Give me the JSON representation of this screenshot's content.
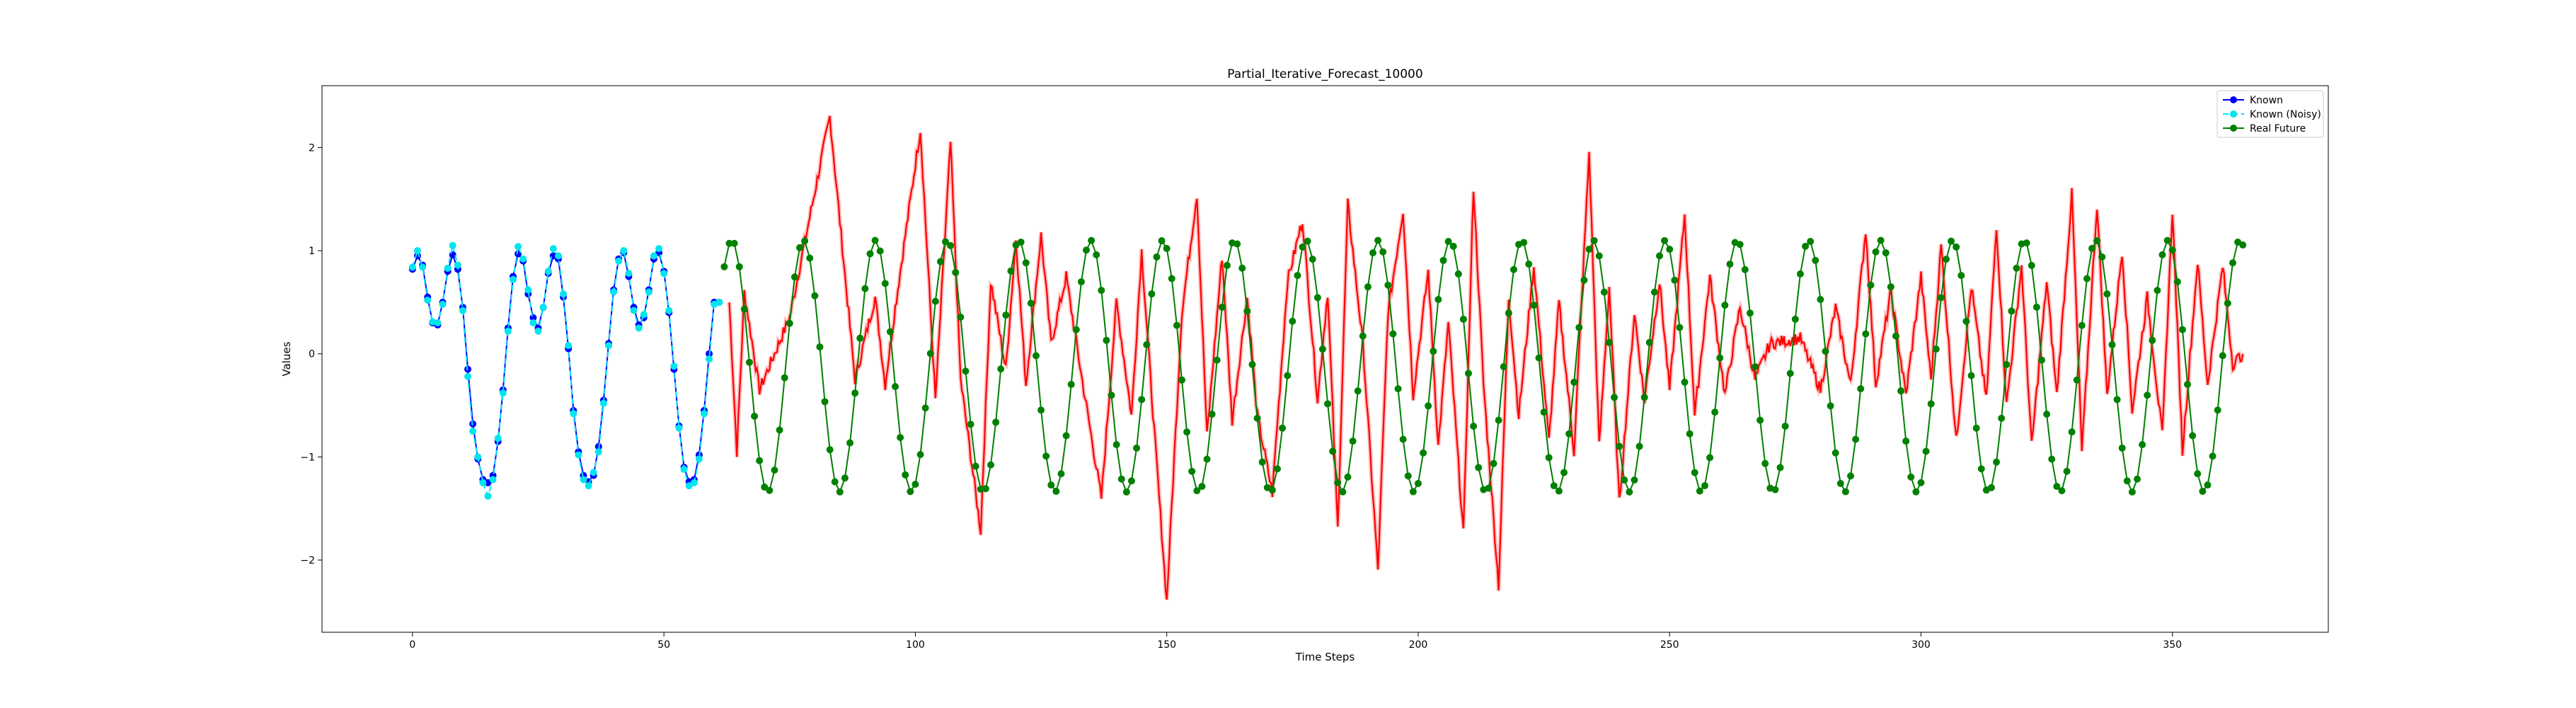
{
  "chart_data": {
    "type": "line",
    "title": "Partial_Iterative_Forecast_10000",
    "xlabel": "Time Steps",
    "ylabel": "Values",
    "xlim": [
      -18,
      381
    ],
    "ylim": [
      -2.7,
      2.6
    ],
    "xticks": [
      0,
      50,
      100,
      150,
      200,
      250,
      300,
      350
    ],
    "yticks": [
      -2,
      -1,
      0,
      1,
      2
    ],
    "grid": false,
    "legend_position": "top-right",
    "series": [
      {
        "name": "Known",
        "color": "#0000ff",
        "marker": "circle",
        "linestyle": "solid",
        "x_start": 0,
        "values": [
          0.82,
          0.95,
          0.86,
          0.55,
          0.3,
          0.28,
          0.5,
          0.8,
          0.96,
          0.82,
          0.45,
          -0.15,
          -0.68,
          -1.02,
          -1.22,
          -1.25,
          -1.18,
          -0.85,
          -0.35,
          0.25,
          0.75,
          0.97,
          0.9,
          0.58,
          0.35,
          0.25,
          0.45,
          0.78,
          0.95,
          0.92,
          0.55,
          0.05,
          -0.55,
          -0.95,
          -1.18,
          -1.24,
          -1.18,
          -0.9,
          -0.45,
          0.1,
          0.62,
          0.92,
          0.98,
          0.75,
          0.45,
          0.28,
          0.35,
          0.62,
          0.92,
          0.98,
          0.8,
          0.4,
          -0.15,
          -0.7,
          -1.1,
          -1.24,
          -1.22,
          -0.98,
          -0.55,
          0.0,
          0.5,
          0.5
        ]
      },
      {
        "name": "Known (Noisy)",
        "color": "#00e5ee",
        "marker": "circle",
        "linestyle": "dashed",
        "x_start": 0,
        "values": [
          0.84,
          1.0,
          0.84,
          0.52,
          0.31,
          0.3,
          0.48,
          0.83,
          1.05,
          0.86,
          0.42,
          -0.22,
          -0.75,
          -1.0,
          -1.25,
          -1.38,
          -1.22,
          -0.82,
          -0.38,
          0.22,
          0.72,
          1.04,
          0.92,
          0.62,
          0.3,
          0.22,
          0.45,
          0.8,
          1.02,
          0.95,
          0.58,
          0.08,
          -0.58,
          -0.98,
          -1.22,
          -1.28,
          -1.15,
          -0.95,
          -0.48,
          0.08,
          0.6,
          0.9,
          1.0,
          0.78,
          0.42,
          0.25,
          0.38,
          0.6,
          0.95,
          1.02,
          0.78,
          0.42,
          -0.12,
          -0.72,
          -1.12,
          -1.28,
          -1.25,
          -1.02,
          -0.58,
          -0.05,
          0.48,
          0.5
        ]
      },
      {
        "name": "Real Future",
        "color": "#008000",
        "marker": "circle",
        "linestyle": "solid",
        "x_start": 62,
        "period": 14.28,
        "phase_x": 63.5,
        "amplitude": 1.22,
        "offset": -0.12,
        "x_end": 364
      },
      {
        "name": "",
        "color": "#ff0000",
        "marker": "none",
        "linestyle": "solid",
        "x_start": 63,
        "x_end": 364,
        "spikes": [
          {
            "x": 64.5,
            "y": -0.95
          },
          {
            "x": 66,
            "y": 0.6
          },
          {
            "x": 69,
            "y": -0.35
          },
          {
            "x": 75,
            "y": 0.35
          },
          {
            "x": 83,
            "y": 2.3
          },
          {
            "x": 88,
            "y": -0.25
          },
          {
            "x": 92,
            "y": 0.55
          },
          {
            "x": 94,
            "y": -0.3
          },
          {
            "x": 96,
            "y": 0.45
          },
          {
            "x": 101,
            "y": 2.18
          },
          {
            "x": 104,
            "y": -0.45
          },
          {
            "x": 107,
            "y": 2.05
          },
          {
            "x": 109,
            "y": -0.25
          },
          {
            "x": 113,
            "y": -1.72
          },
          {
            "x": 115,
            "y": 0.7
          },
          {
            "x": 118,
            "y": -0.15
          },
          {
            "x": 120,
            "y": 1.12
          },
          {
            "x": 122,
            "y": -0.3
          },
          {
            "x": 125,
            "y": 1.15
          },
          {
            "x": 127,
            "y": 0.1
          },
          {
            "x": 130,
            "y": 0.75
          },
          {
            "x": 133,
            "y": -0.2
          },
          {
            "x": 137,
            "y": -1.4
          },
          {
            "x": 140,
            "y": 0.5
          },
          {
            "x": 143,
            "y": -0.6
          },
          {
            "x": 145,
            "y": 1.0
          },
          {
            "x": 147,
            "y": -0.4
          },
          {
            "x": 150,
            "y": -2.4
          },
          {
            "x": 153,
            "y": 0.4
          },
          {
            "x": 156,
            "y": 1.55
          },
          {
            "x": 158,
            "y": -0.8
          },
          {
            "x": 161,
            "y": 0.95
          },
          {
            "x": 163,
            "y": -0.65
          },
          {
            "x": 166,
            "y": 0.55
          },
          {
            "x": 168,
            "y": -0.6
          },
          {
            "x": 171,
            "y": -1.35
          },
          {
            "x": 174,
            "y": 0.7
          },
          {
            "x": 177,
            "y": 1.3
          },
          {
            "x": 180,
            "y": -0.45
          },
          {
            "x": 182,
            "y": 0.6
          },
          {
            "x": 184,
            "y": -1.7
          },
          {
            "x": 186,
            "y": 1.45
          },
          {
            "x": 189,
            "y": 0.1
          },
          {
            "x": 192,
            "y": -2.1
          },
          {
            "x": 194,
            "y": 0.4
          },
          {
            "x": 197,
            "y": 1.4
          },
          {
            "x": 199,
            "y": -0.4
          },
          {
            "x": 202,
            "y": 0.8
          },
          {
            "x": 204,
            "y": -0.9
          },
          {
            "x": 206,
            "y": 0.3
          },
          {
            "x": 209,
            "y": -1.75
          },
          {
            "x": 211,
            "y": 1.62
          },
          {
            "x": 213,
            "y": -0.3
          },
          {
            "x": 216,
            "y": -2.25
          },
          {
            "x": 218,
            "y": 0.55
          },
          {
            "x": 220,
            "y": -0.6
          },
          {
            "x": 223,
            "y": 0.85
          },
          {
            "x": 226,
            "y": -0.85
          },
          {
            "x": 228,
            "y": 0.5
          },
          {
            "x": 231,
            "y": -0.95
          },
          {
            "x": 234,
            "y": 1.95
          },
          {
            "x": 236,
            "y": -0.9
          },
          {
            "x": 238,
            "y": 0.65
          },
          {
            "x": 240,
            "y": -1.45
          },
          {
            "x": 243,
            "y": 0.4
          },
          {
            "x": 245,
            "y": -0.45
          },
          {
            "x": 248,
            "y": 0.7
          },
          {
            "x": 250,
            "y": -0.35
          },
          {
            "x": 253,
            "y": 1.35
          },
          {
            "x": 255,
            "y": -0.6
          },
          {
            "x": 258,
            "y": 0.75
          },
          {
            "x": 261,
            "y": -0.4
          },
          {
            "x": 264,
            "y": 0.45
          },
          {
            "x": 267,
            "y": -0.25
          },
          {
            "x": 270,
            "y": 0.1
          },
          {
            "x": 276,
            "y": 0.15
          },
          {
            "x": 280,
            "y": -0.35
          },
          {
            "x": 283,
            "y": 0.45
          },
          {
            "x": 286,
            "y": -0.3
          },
          {
            "x": 289,
            "y": 1.2
          },
          {
            "x": 291,
            "y": -0.3
          },
          {
            "x": 294,
            "y": 0.6
          },
          {
            "x": 297,
            "y": -0.4
          },
          {
            "x": 300,
            "y": 0.75
          },
          {
            "x": 302,
            "y": -0.25
          },
          {
            "x": 304,
            "y": 1.05
          },
          {
            "x": 307,
            "y": -0.85
          },
          {
            "x": 310,
            "y": 0.65
          },
          {
            "x": 313,
            "y": -0.45
          },
          {
            "x": 315,
            "y": 1.25
          },
          {
            "x": 317,
            "y": -0.5
          },
          {
            "x": 320,
            "y": 0.85
          },
          {
            "x": 322,
            "y": -0.9
          },
          {
            "x": 325,
            "y": 0.7
          },
          {
            "x": 327,
            "y": -0.4
          },
          {
            "x": 330,
            "y": 1.55
          },
          {
            "x": 332,
            "y": -0.95
          },
          {
            "x": 335,
            "y": 1.45
          },
          {
            "x": 337,
            "y": -0.4
          },
          {
            "x": 340,
            "y": 1.0
          },
          {
            "x": 342,
            "y": -0.55
          },
          {
            "x": 345,
            "y": 0.55
          },
          {
            "x": 348,
            "y": -0.8
          },
          {
            "x": 350,
            "y": 1.4
          },
          {
            "x": 352,
            "y": -0.95
          },
          {
            "x": 355,
            "y": 0.9
          },
          {
            "x": 357,
            "y": -0.3
          },
          {
            "x": 360,
            "y": 0.85
          },
          {
            "x": 362,
            "y": -0.1
          },
          {
            "x": 364,
            "y": 0.0
          }
        ]
      }
    ]
  }
}
